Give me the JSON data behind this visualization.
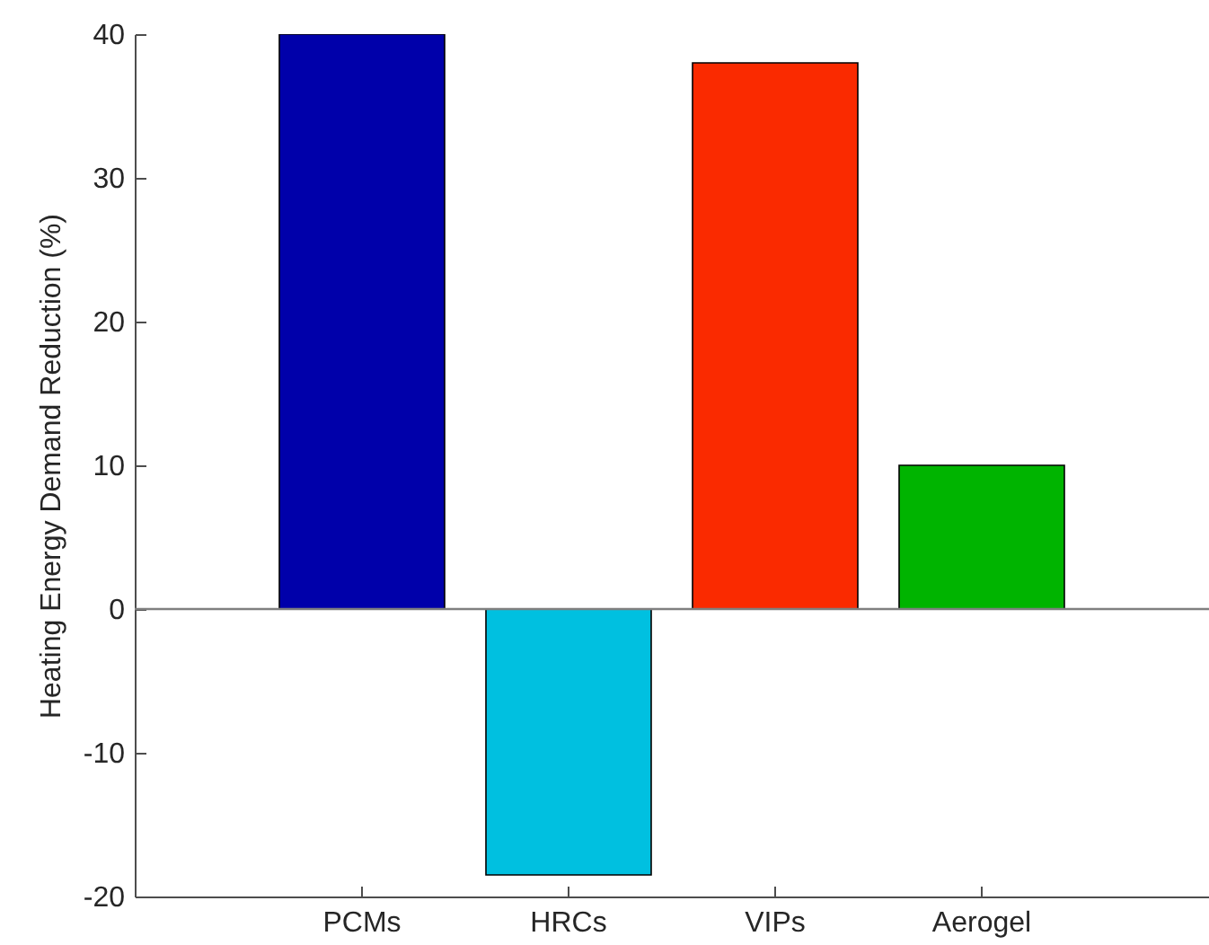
{
  "chart_data": {
    "type": "bar",
    "ylabel": "Heating Energy Demand Reduction (%)",
    "categories": [
      "PCMs",
      "HRCs",
      "VIPs",
      "Aerogel"
    ],
    "values": [
      40,
      -18.5,
      38,
      10
    ],
    "colors": [
      "#0000aa",
      "#00c0e0",
      "#fa2a00",
      "#00b400"
    ],
    "ylim": [
      -20,
      40
    ],
    "yticks": [
      -20,
      -10,
      0,
      10,
      20,
      30,
      40
    ],
    "ref_lines": [
      {
        "axis": "y",
        "value": 0,
        "color": "#7f7f7f"
      }
    ],
    "grid": false
  }
}
